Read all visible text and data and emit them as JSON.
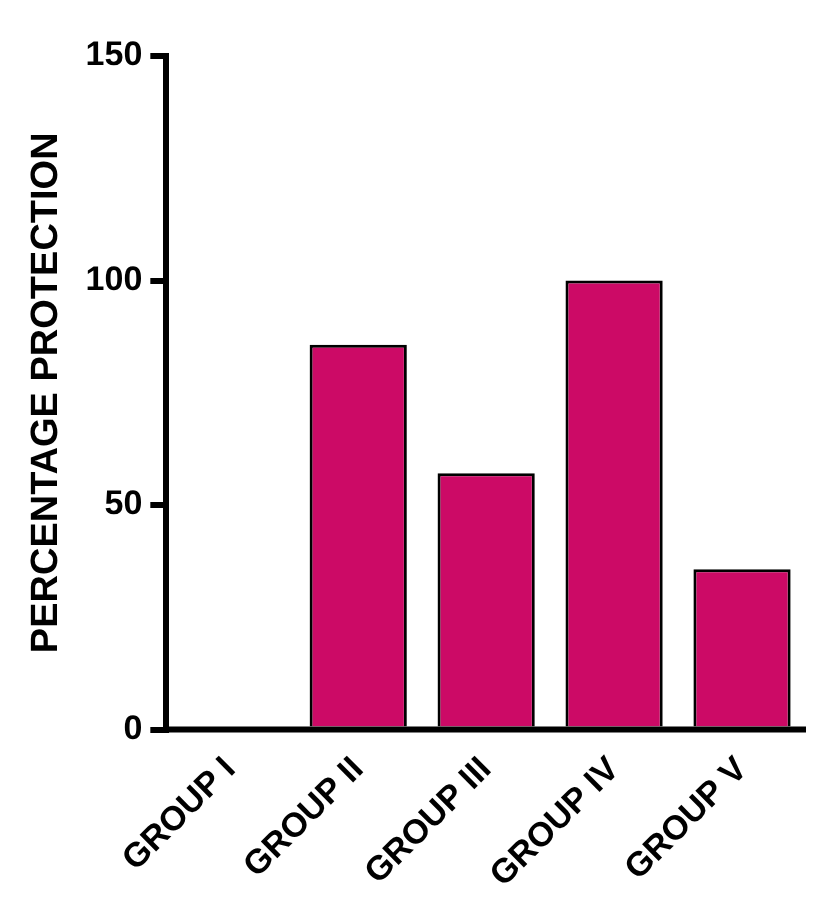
{
  "chart_data": {
    "type": "bar",
    "ylabel": "PERCENTAGE PROTECTION",
    "categories": [
      "GROUP I",
      "GROUP II",
      "GROUP III",
      "GROUP IV",
      "GROUP V"
    ],
    "values": [
      0,
      85.7,
      57.1,
      100,
      35.7
    ],
    "color": "#cc0a66",
    "ylim": [
      0,
      150
    ],
    "yticks": [
      0,
      50,
      100,
      150
    ],
    "grid": false,
    "legend": false
  }
}
